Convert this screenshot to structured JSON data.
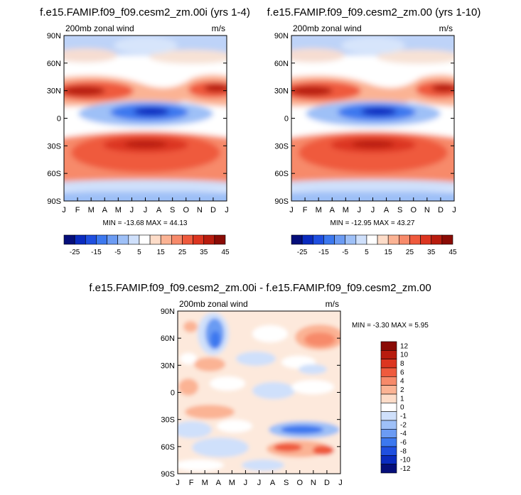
{
  "chart_data": [
    {
      "type": "heatmap",
      "title": "f.e15.FAMIP.f09_f09.cesm2_zm.00i (yrs 1-4)",
      "subtitle_left": "200mb zonal wind",
      "subtitle_right": "m/s",
      "x_ticks": [
        "J",
        "F",
        "M",
        "A",
        "M",
        "J",
        "J",
        "A",
        "S",
        "O",
        "N",
        "D",
        "J"
      ],
      "y_ticks": [
        "90N",
        "60N",
        "30N",
        "0",
        "30S",
        "60S",
        "90S"
      ],
      "y_range": [
        -90,
        90
      ],
      "stats": "MIN = -13.68 MAX =  44.13",
      "colorbar_labels": [
        "-25",
        "-15",
        "-5",
        "5",
        "15",
        "25",
        "35",
        "45"
      ],
      "colorbar_colors": [
        "#050e7a",
        "#0a2bbf",
        "#1f4fe0",
        "#3c78ef",
        "#6b9bf3",
        "#9ec0f7",
        "#cfe0fb",
        "#ffffff",
        "#fddcc8",
        "#fbb394",
        "#f78a6a",
        "#ef5a3d",
        "#dc3520",
        "#b81c0e",
        "#8a0b05"
      ],
      "features": [
        {
          "name": "nh-jet-winter",
          "x": 1.3,
          "y": 30,
          "value": 43
        },
        {
          "name": "nh-jet-dec",
          "x": 11.3,
          "y": 32,
          "value": 40
        },
        {
          "name": "sh-jet",
          "x": 6.5,
          "y": -29,
          "value": 44
        },
        {
          "name": "tropical-easterlies",
          "x": 6.7,
          "y": 5,
          "value": -13.7
        }
      ]
    },
    {
      "type": "heatmap",
      "title": "f.e15.FAMIP.f09_f09.cesm2_zm.00 (yrs 1-10)",
      "subtitle_left": "200mb zonal wind",
      "subtitle_right": "m/s",
      "x_ticks": [
        "J",
        "F",
        "M",
        "A",
        "M",
        "J",
        "J",
        "A",
        "S",
        "O",
        "N",
        "D",
        "J"
      ],
      "y_ticks": [
        "90N",
        "60N",
        "30N",
        "0",
        "30S",
        "60S",
        "90S"
      ],
      "y_range": [
        -90,
        90
      ],
      "stats": "MIN = -12.95 MAX =  43.27",
      "colorbar_labels": [
        "-25",
        "-15",
        "-5",
        "5",
        "15",
        "25",
        "35",
        "45"
      ],
      "colorbar_colors": [
        "#050e7a",
        "#0a2bbf",
        "#1f4fe0",
        "#3c78ef",
        "#6b9bf3",
        "#9ec0f7",
        "#cfe0fb",
        "#ffffff",
        "#fddcc8",
        "#fbb394",
        "#f78a6a",
        "#ef5a3d",
        "#dc3520",
        "#b81c0e",
        "#8a0b05"
      ],
      "features": [
        {
          "name": "nh-jet-winter",
          "x": 1.3,
          "y": 30,
          "value": 42
        },
        {
          "name": "nh-jet-dec",
          "x": 11.3,
          "y": 32,
          "value": 39
        },
        {
          "name": "sh-jet",
          "x": 6.5,
          "y": -29,
          "value": 43
        },
        {
          "name": "tropical-easterlies",
          "x": 6.7,
          "y": 5,
          "value": -13
        }
      ]
    },
    {
      "type": "heatmap",
      "title": "f.e15.FAMIP.f09_f09.cesm2_zm.00i - f.e15.FAMIP.f09_f09.cesm2_zm.00",
      "subtitle_left": "200mb zonal wind",
      "subtitle_right": "m/s",
      "x_ticks": [
        "J",
        "F",
        "M",
        "A",
        "M",
        "J",
        "J",
        "A",
        "S",
        "O",
        "N",
        "D",
        "J"
      ],
      "y_ticks": [
        "90N",
        "60N",
        "30N",
        "0",
        "30S",
        "60S",
        "90S"
      ],
      "y_range": [
        -90,
        90
      ],
      "stats": "MIN =  -3.30 MAX =   5.95",
      "colorbar_labels": [
        "12",
        "10",
        "8",
        "6",
        "4",
        "2",
        "1",
        "0",
        "-1",
        "-2",
        "-4",
        "-6",
        "-8",
        "-10",
        "-12"
      ],
      "colorbar_colors": [
        "#8a0b05",
        "#b81c0e",
        "#dc3520",
        "#ef5a3d",
        "#f78a6a",
        "#fbb394",
        "#fddcc8",
        "#ffffff",
        "#cfe0fb",
        "#9ec0f7",
        "#6b9bf3",
        "#3c78ef",
        "#1f4fe0",
        "#0a2bbf",
        "#050e7a"
      ]
    }
  ]
}
